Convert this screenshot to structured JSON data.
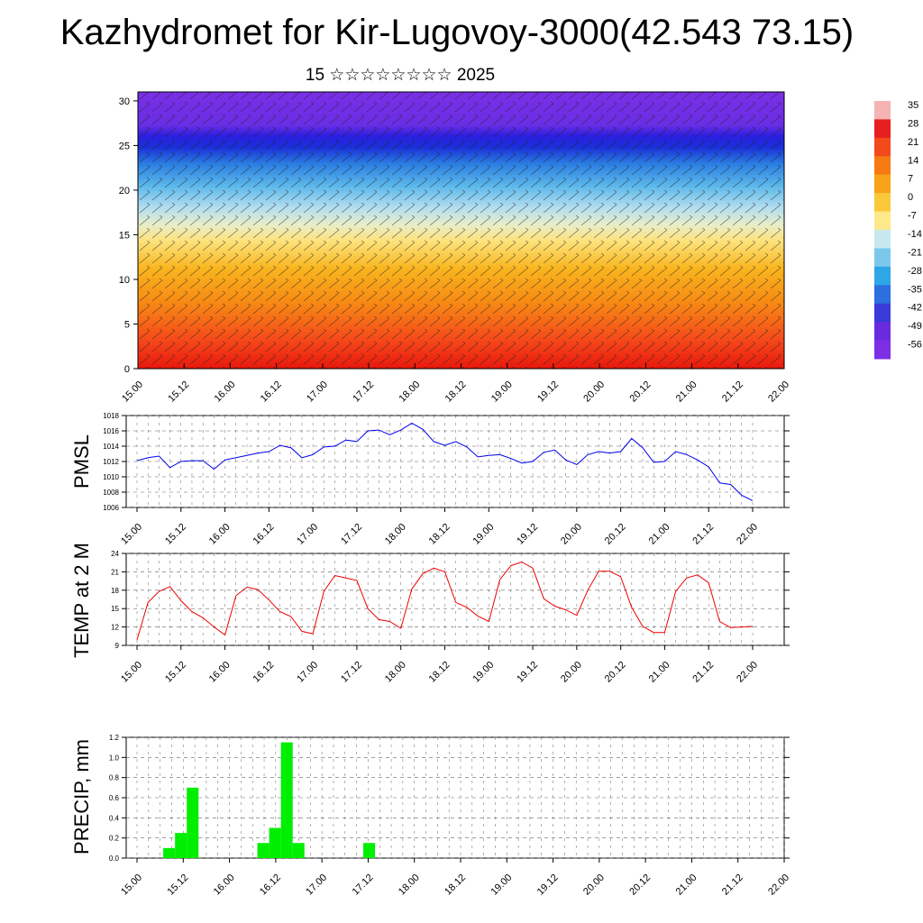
{
  "header": {
    "title": "Kazhydromet for Kir-Lugovoy-3000(42.543 73.15)",
    "subtitle": "15 ☆☆☆☆☆☆☆☆ 2025"
  },
  "chart_data": [
    {
      "type": "heatmap",
      "name": "vertical-cross-section",
      "x_ticks": [
        "15.00",
        "15.12",
        "16.00",
        "16.12",
        "17.00",
        "17.12",
        "18.00",
        "18.12",
        "19.00",
        "19.12",
        "20.00",
        "20.12",
        "21.00",
        "21.12",
        "22.00"
      ],
      "y_ticks": [
        "0",
        "5",
        "10",
        "15",
        "20",
        "25",
        "30"
      ],
      "ylim": [
        0,
        31
      ],
      "colorbar_labels": [
        "35",
        "28",
        "21",
        "14",
        "7",
        "0",
        "-7",
        "-14",
        "-21",
        "-28",
        "-35",
        "-42",
        "-49",
        "-56"
      ],
      "colorbar_colors": [
        "#f5b3b3",
        "#e62020",
        "#f24a1a",
        "#f77a12",
        "#f9a21a",
        "#fbc83a",
        "#fde98a",
        "#c8e8f0",
        "#7cc8ec",
        "#2fa6e6",
        "#2b6fe0",
        "#3a3bd8",
        "#6a2be0",
        "#7d2fe6"
      ]
    },
    {
      "type": "line",
      "name": "PMSL",
      "ylabel": "PMSL",
      "ylim": [
        1006,
        1018
      ],
      "y_ticks": [
        "1006",
        "1008",
        "1010",
        "1012",
        "1014",
        "1016",
        "1018"
      ],
      "x_ticks": [
        "15.00",
        "15.12",
        "16.00",
        "16.12",
        "17.00",
        "17.12",
        "18.00",
        "18.12",
        "19.00",
        "19.12",
        "20.00",
        "20.12",
        "21.00",
        "21.12",
        "22.00"
      ],
      "color": "#0000ee",
      "values": [
        1012.1,
        1012.5,
        1012.7,
        1011.2,
        1012.0,
        1012.1,
        1012.1,
        1011.0,
        1012.2,
        1012.5,
        1012.8,
        1013.1,
        1013.3,
        1014.1,
        1013.8,
        1012.5,
        1012.9,
        1013.9,
        1014.0,
        1014.8,
        1014.6,
        1016.0,
        1016.1,
        1015.5,
        1016.1,
        1017.0,
        1016.2,
        1014.6,
        1014.1,
        1014.6,
        1013.9,
        1012.6,
        1012.8,
        1012.9,
        1012.4,
        1011.8,
        1012.0,
        1013.2,
        1013.5,
        1012.2,
        1011.6,
        1012.9,
        1013.3,
        1013.1,
        1013.3,
        1015.0,
        1013.8,
        1011.9,
        1012.0,
        1013.3,
        1012.9,
        1012.2,
        1011.3,
        1009.2,
        1009.0,
        1007.6,
        1006.9
      ]
    },
    {
      "type": "line",
      "name": "TEMP at 2 M",
      "ylabel": "TEMP at 2 M",
      "ylim": [
        9,
        24
      ],
      "y_ticks": [
        "9",
        "12",
        "15",
        "18",
        "21",
        "24"
      ],
      "x_ticks": [
        "15.00",
        "15.12",
        "16.00",
        "16.12",
        "17.00",
        "17.12",
        "18.00",
        "18.12",
        "19.00",
        "19.12",
        "20.00",
        "20.12",
        "21.00",
        "21.12",
        "22.00"
      ],
      "color": "#ee0000",
      "values": [
        9.9,
        16.0,
        17.8,
        18.6,
        16.3,
        14.5,
        13.5,
        12.0,
        10.7,
        17.1,
        18.5,
        18.1,
        16.4,
        14.5,
        13.7,
        11.3,
        10.9,
        17.8,
        20.4,
        20.0,
        19.6,
        15.0,
        13.2,
        12.9,
        11.8,
        18.2,
        20.7,
        21.6,
        21.0,
        16.0,
        15.2,
        13.8,
        12.9,
        19.7,
        22.0,
        22.6,
        21.6,
        16.6,
        15.4,
        14.8,
        13.9,
        18.0,
        21.1,
        21.1,
        20.2,
        15.2,
        12.1,
        11.1,
        11.1,
        17.8,
        20.0,
        20.5,
        19.2,
        12.9,
        11.9,
        12.0,
        12.1
      ]
    },
    {
      "type": "bar",
      "name": "PRECIP, mm",
      "ylabel": "PRECIP, mm",
      "ylim": [
        0,
        1.2
      ],
      "y_ticks": [
        "0.0",
        "0.2",
        "0.4",
        "0.6",
        "0.8",
        "1.0",
        "1.2"
      ],
      "x_ticks": [
        "15.00",
        "15.12",
        "16.00",
        "16.12",
        "17.00",
        "17.12",
        "18.00",
        "18.12",
        "19.00",
        "19.12",
        "20.00",
        "20.12",
        "21.00",
        "21.12",
        "22.00"
      ],
      "color": "#00ee00",
      "values": [
        0,
        0,
        0.1,
        0.25,
        0.7,
        0,
        0,
        0,
        0,
        0,
        0.15,
        0.3,
        1.15,
        0.15,
        0,
        0,
        0,
        0,
        0,
        0.15,
        0,
        0,
        0,
        0,
        0,
        0,
        0,
        0,
        0,
        0,
        0,
        0,
        0,
        0,
        0,
        0,
        0,
        0,
        0,
        0,
        0,
        0,
        0,
        0,
        0,
        0,
        0,
        0,
        0,
        0,
        0,
        0,
        0,
        0,
        0,
        0
      ]
    }
  ]
}
